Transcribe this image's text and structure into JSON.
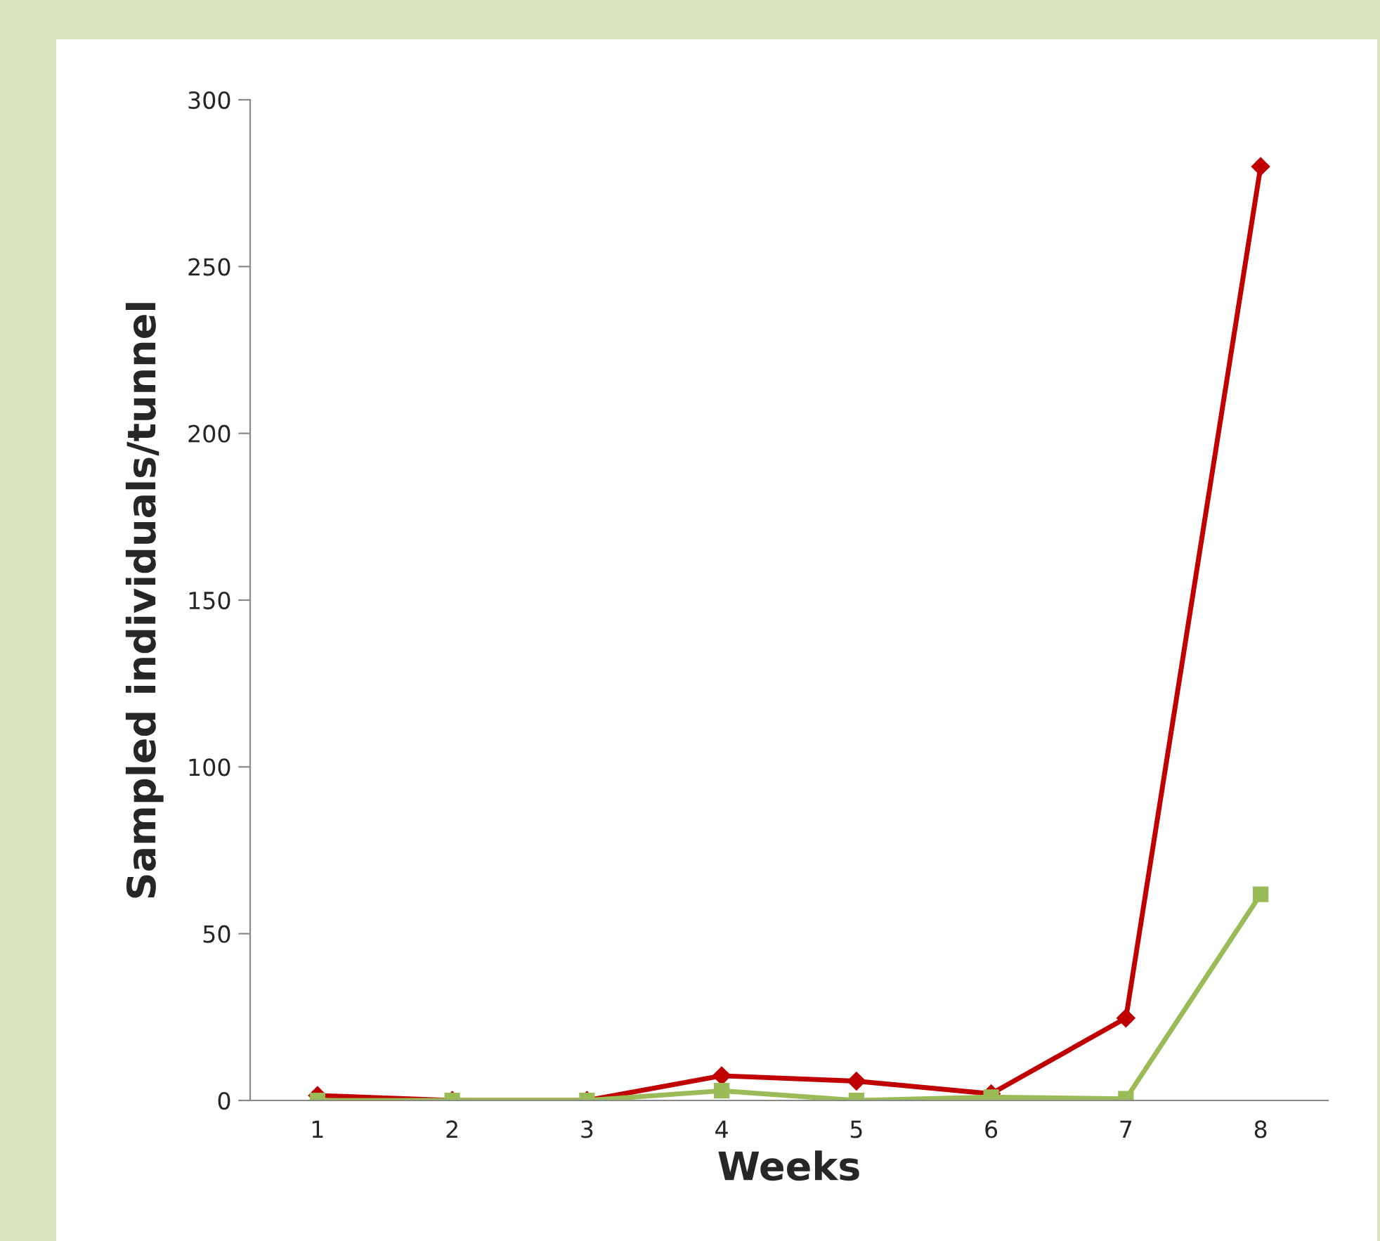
{
  "chart_data": {
    "type": "line",
    "xlabel": "Weeks",
    "ylabel": "Sampled individuals/tunnel",
    "categories": [
      "1",
      "2",
      "3",
      "4",
      "5",
      "6",
      "7",
      "8"
    ],
    "series": [
      {
        "color": "#c00000",
        "marker": "diamond",
        "values": [
          1.5,
          0,
          0,
          7.4,
          5.8,
          2,
          24.7,
          280
        ]
      },
      {
        "color": "#9bbb59",
        "marker": "square",
        "values": [
          0,
          0,
          0,
          2.9,
          0,
          1,
          0.5,
          61.8
        ]
      }
    ],
    "ylim": [
      0,
      300
    ],
    "yticks": [
      0,
      50,
      100,
      150,
      200,
      250,
      300
    ],
    "grid": false,
    "legend": false
  }
}
